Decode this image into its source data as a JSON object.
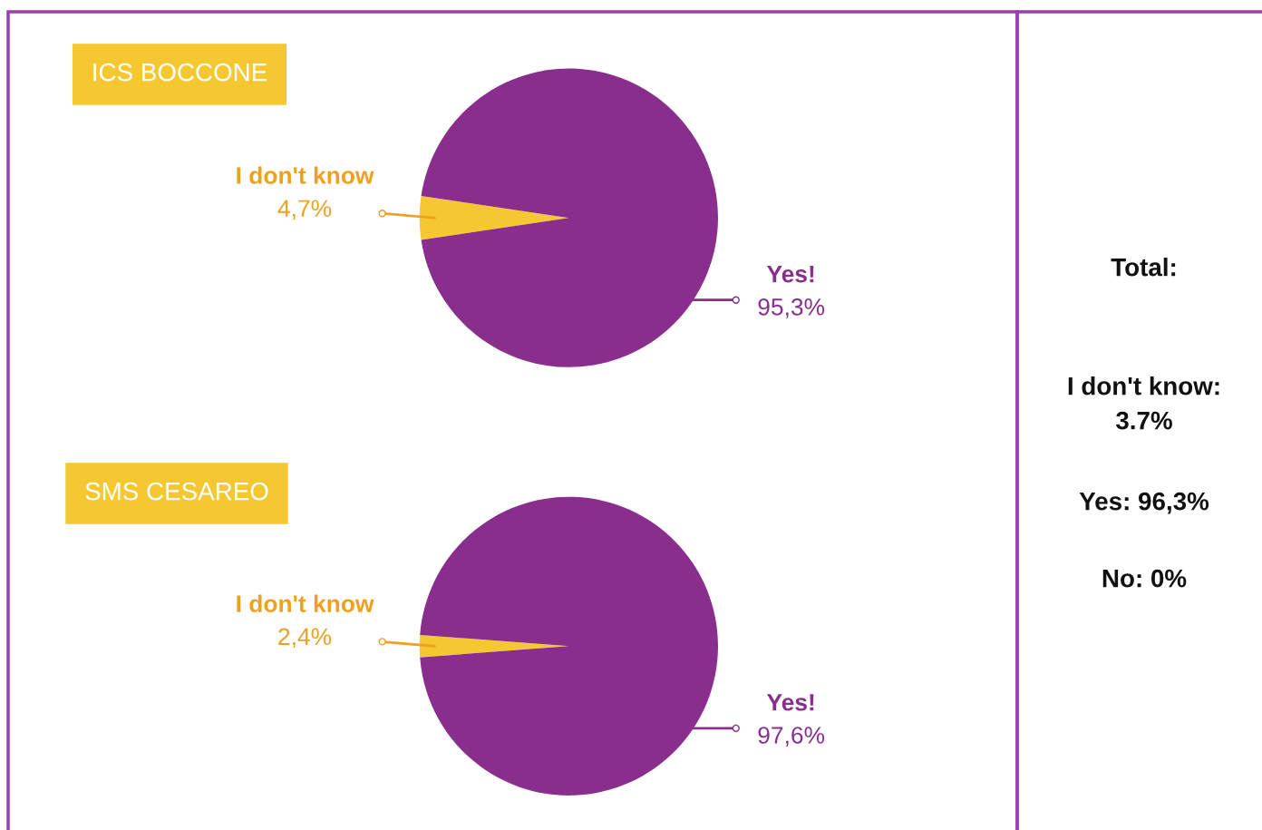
{
  "chart_data": [
    {
      "type": "pie",
      "title": "ICS BOCCONE",
      "categories": [
        "I don't know",
        "Yes!"
      ],
      "values": [
        4.7,
        95.3
      ],
      "value_labels": [
        "4,7%",
        "95,3%"
      ],
      "colors": [
        "#f5c832",
        "#8a2e8e"
      ]
    },
    {
      "type": "pie",
      "title": "SMS CESAREO",
      "categories": [
        "I don't know",
        "Yes!"
      ],
      "values": [
        2.4,
        97.6
      ],
      "value_labels": [
        "2,4%",
        "97,6%"
      ],
      "colors": [
        "#f5c832",
        "#8a2e8e"
      ]
    },
    {
      "type": "other",
      "annotations": [
        "Total:",
        "I don't know:\n3.7%",
        "Yes: 96,3%",
        "No: 0%"
      ]
    }
  ]
}
